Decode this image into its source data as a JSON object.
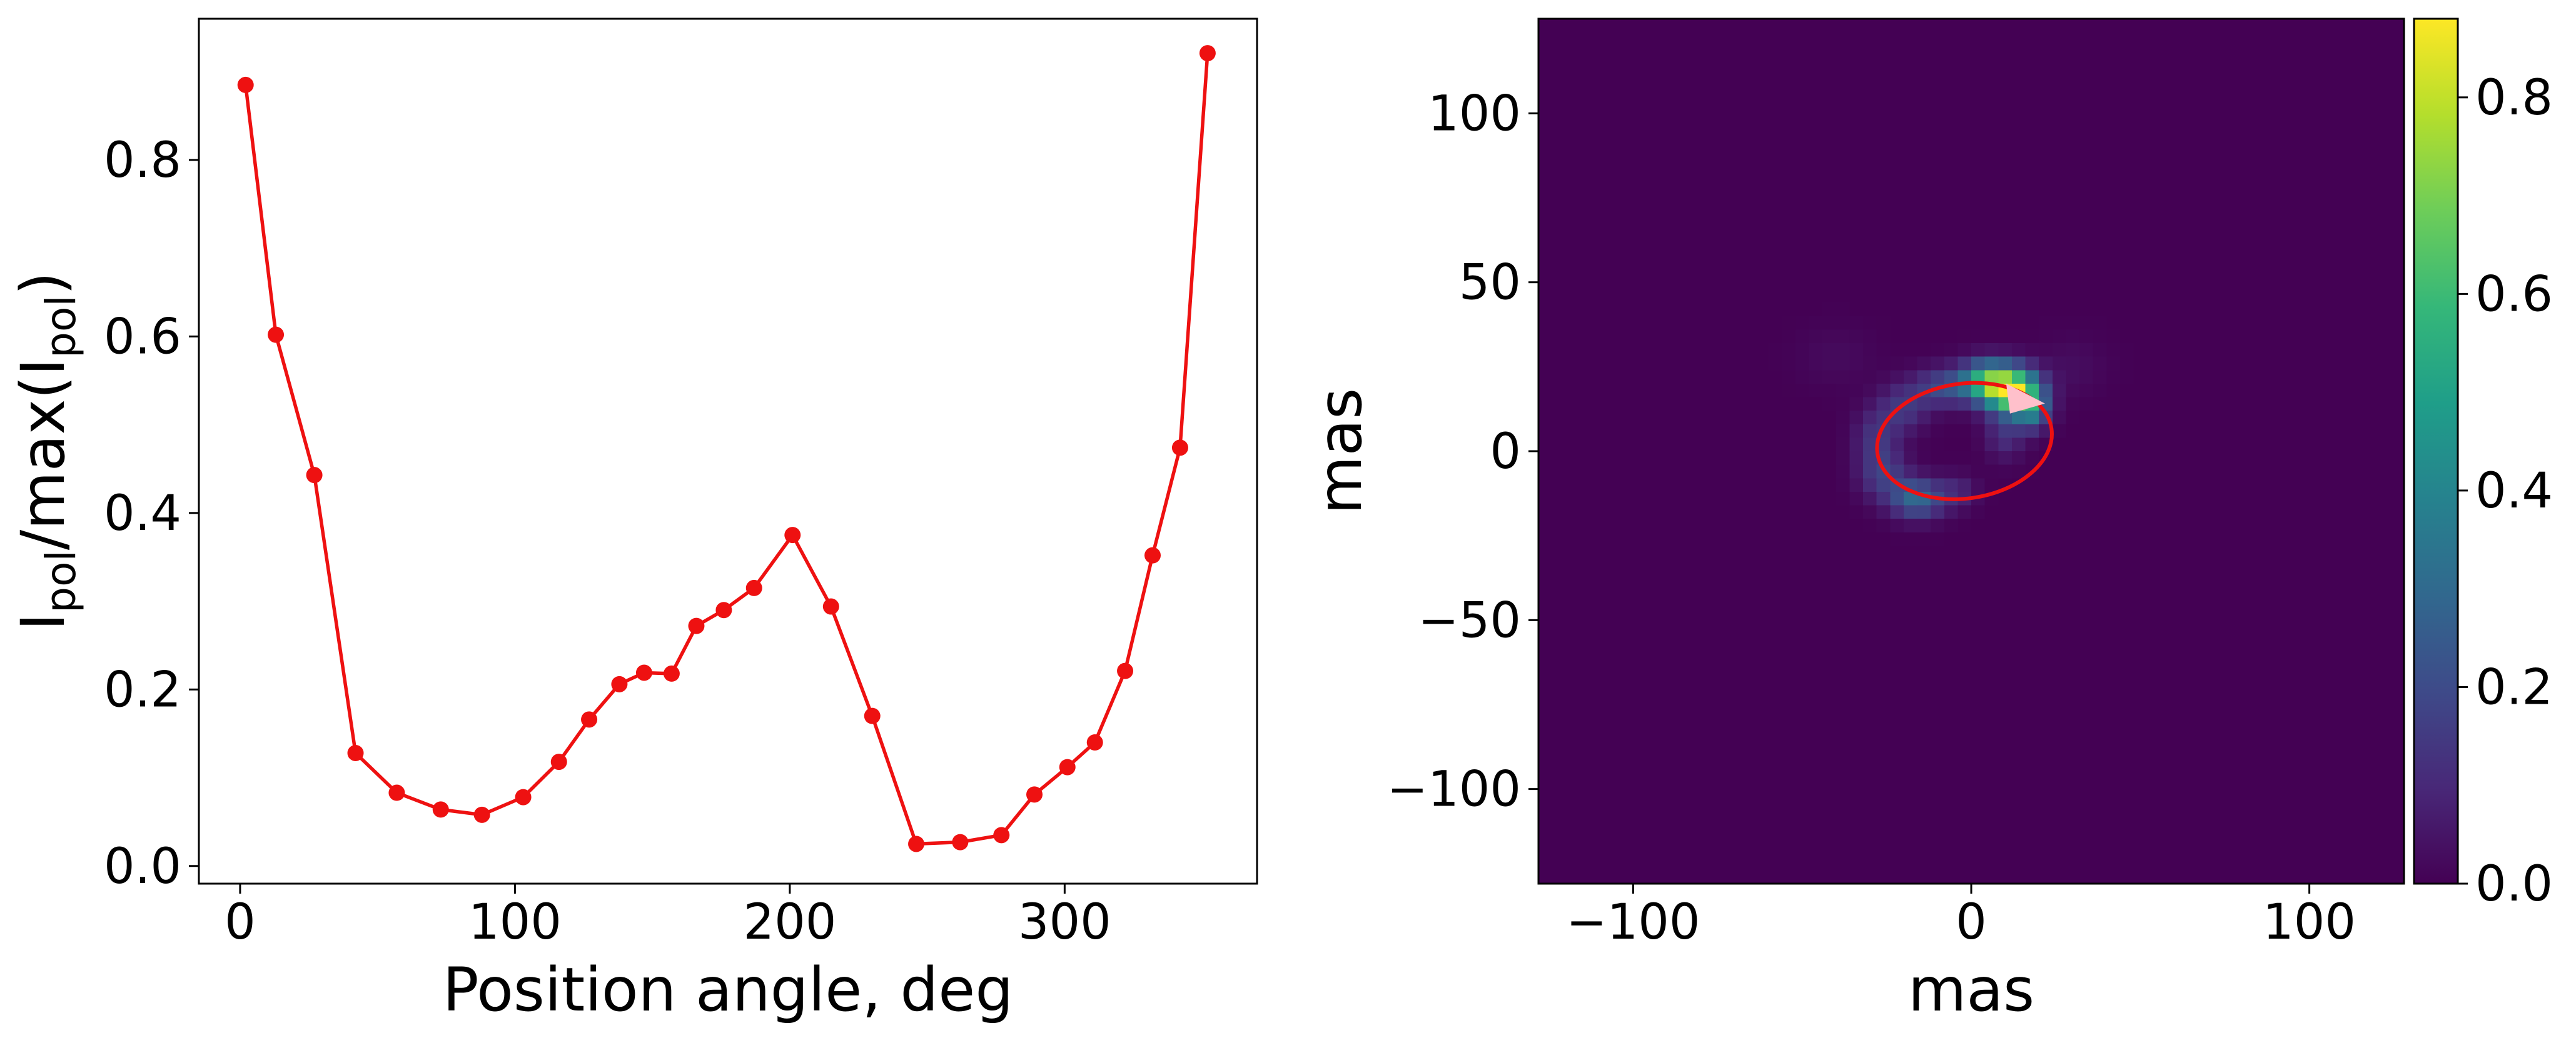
{
  "chart_data": [
    {
      "type": "line",
      "title": "",
      "xlabel": "Position angle, deg",
      "ylabel": {
        "main": "I",
        "sub1": "pol",
        "mid": "/max(I",
        "sub2": "pol",
        "end": ")"
      },
      "xlim": [
        -15,
        370
      ],
      "ylim": [
        -0.02,
        0.96
      ],
      "xticks": [
        0,
        100,
        200,
        300
      ],
      "yticks": [
        0.0,
        0.2,
        0.4,
        0.6,
        0.8
      ],
      "color": "#ee1111",
      "x": [
        2,
        13,
        27,
        42,
        57,
        73,
        88,
        103,
        116,
        127,
        138,
        147,
        157,
        166,
        176,
        187,
        201,
        215,
        230,
        246,
        262,
        277,
        289,
        301,
        311,
        322,
        332,
        342,
        352
      ],
      "y": [
        0.885,
        0.602,
        0.443,
        0.128,
        0.083,
        0.064,
        0.058,
        0.078,
        0.118,
        0.166,
        0.206,
        0.219,
        0.218,
        0.272,
        0.29,
        0.315,
        0.375,
        0.294,
        0.17,
        0.025,
        0.027,
        0.035,
        0.081,
        0.112,
        0.14,
        0.221,
        0.352,
        0.474,
        0.921
      ]
    },
    {
      "type": "heatmap",
      "xlabel": "mas",
      "ylabel": "mas",
      "xlim": [
        -128,
        128
      ],
      "ylim": [
        -128,
        128
      ],
      "xticks": [
        -100,
        0,
        100
      ],
      "yticks": [
        -100,
        -50,
        0,
        50,
        100
      ],
      "colorbar": {
        "range": [
          0.0,
          0.88
        ],
        "ticks": [
          0.0,
          0.2,
          0.4,
          0.6,
          0.8
        ],
        "colormap": "viridis"
      },
      "ellipse": {
        "cx": -2,
        "cy": 3,
        "rx": 26,
        "ry": 17,
        "color": "#ee1111"
      },
      "arrow": {
        "x": 17,
        "y": 13,
        "color": "#ffc0cb"
      },
      "blobs": [
        {
          "x": 12,
          "y": 18,
          "sx": 5.5,
          "sy": 4.5,
          "a": 0.83
        },
        {
          "x": 4,
          "y": 21,
          "sx": 5,
          "sy": 4,
          "a": 0.45
        },
        {
          "x": -8,
          "y": 19,
          "sx": 6,
          "sy": 4,
          "a": 0.2
        },
        {
          "x": -20,
          "y": 13,
          "sx": 5,
          "sy": 5,
          "a": 0.14
        },
        {
          "x": -28,
          "y": 4,
          "sx": 4.5,
          "sy": 6,
          "a": 0.13
        },
        {
          "x": -26,
          "y": -7,
          "sx": 5,
          "sy": 5,
          "a": 0.15
        },
        {
          "x": -16,
          "y": -14,
          "sx": 5.5,
          "sy": 4,
          "a": 0.3
        },
        {
          "x": -4,
          "y": -12,
          "sx": 4,
          "sy": 3.5,
          "a": 0.09
        },
        {
          "x": 10,
          "y": 5,
          "sx": 4,
          "sy": 5,
          "a": 0.12
        },
        {
          "x": 18,
          "y": 12,
          "sx": 3.5,
          "sy": 4,
          "a": 0.3
        },
        {
          "x": -40,
          "y": 28,
          "sx": 8,
          "sy": 6,
          "a": 0.025
        },
        {
          "x": 30,
          "y": 25,
          "sx": 7,
          "sy": 6,
          "a": 0.03
        }
      ]
    }
  ]
}
